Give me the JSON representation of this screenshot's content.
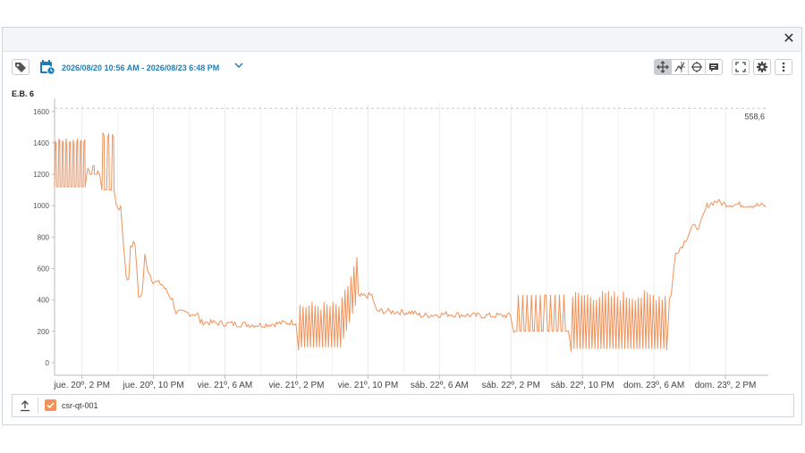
{
  "range_label": "2026/08/20 10:56 AM - 2026/08/23 6:48 PM",
  "panel_title": "E.B. 6",
  "legend": {
    "series_label": "csr-qt-001"
  },
  "icons": {
    "close": "close-icon",
    "tag": "tag-icon",
    "calendar": "calendar-icon",
    "chevron": "chevron-down-icon",
    "pan": "pan-icon",
    "crosshair": "crosshair-icon",
    "zoom": "zoom-icon",
    "annotate": "annotate-icon",
    "fullscreen": "fullscreen-icon",
    "settings": "gear-icon",
    "more": "more-icon",
    "export": "export-icon"
  },
  "colors": {
    "series": "#f0925a",
    "accent": "#1e7fb8",
    "threshold": "#c8c8c8"
  },
  "chart_data": {
    "type": "line",
    "x_label": "",
    "y_label": "",
    "ylim": [
      -80,
      1650
    ],
    "y_ticks": [
      0,
      200,
      400,
      600,
      800,
      1000,
      1200,
      1400,
      1600
    ],
    "y_tick_labels": [
      "0",
      "200",
      "400",
      "600",
      "800",
      "1000",
      "1200",
      "1400",
      "1600"
    ],
    "x_tick_labels": [
      "jue. 20º, 2 PM",
      "jue. 20º, 10 PM",
      "vie. 21º, 6 AM",
      "vie. 21º, 2 PM",
      "vie. 21º, 10 PM",
      "sáb. 22º, 6 AM",
      "sáb. 22º, 2 PM",
      "sáb. 22º, 10 PM",
      "dom. 23º, 6 AM",
      "dom. 23º, 2 PM"
    ],
    "x_tick_hours": [
      3.07,
      11.07,
      19.07,
      27.07,
      35.07,
      43.07,
      51.07,
      59.07,
      67.07,
      75.07
    ],
    "x_range_hours": [
      0,
      79.87
    ],
    "threshold": {
      "value": 1620,
      "label": "558,6"
    },
    "grid": true,
    "legend_position": "bottom",
    "series": [
      {
        "name": "csr-qt-001",
        "segments": [
          {
            "t0": 0.0,
            "t1": 3.6,
            "base": 1120,
            "peak": 1430,
            "n": 9
          },
          {
            "t0": 3.6,
            "t1": 5.3,
            "base": 1200,
            "peak": 1260,
            "n": 3
          },
          {
            "t0": 5.3,
            "t1": 6.9,
            "base": 1100,
            "peak": 1470,
            "n": 3
          }
        ],
        "points": [
          [
            6.9,
            1000
          ],
          [
            7.4,
            980
          ],
          [
            8.0,
            560
          ],
          [
            8.3,
            520
          ],
          [
            8.5,
            750
          ],
          [
            9.0,
            760
          ],
          [
            9.4,
            420
          ],
          [
            9.8,
            440
          ],
          [
            10.1,
            680
          ],
          [
            10.4,
            600
          ],
          [
            11.0,
            520
          ],
          [
            12.0,
            500
          ],
          [
            12.6,
            450
          ],
          [
            13.2,
            400
          ],
          [
            13.6,
            320
          ],
          [
            16.0,
            310
          ],
          [
            16.3,
            260
          ],
          [
            19.0,
            250
          ],
          [
            23.0,
            240
          ],
          [
            27.0,
            260
          ],
          [
            27.3,
            100
          ],
          [
            32.0,
            100
          ],
          [
            34.0,
            420
          ],
          [
            35.5,
            430
          ],
          [
            36.0,
            330
          ],
          [
            40.0,
            320
          ],
          [
            41.0,
            300
          ],
          [
            44.0,
            310
          ],
          [
            47.0,
            300
          ],
          [
            51.0,
            300
          ],
          [
            51.4,
            200
          ],
          [
            55.0,
            200
          ],
          [
            57.5,
            200
          ],
          [
            57.8,
            90
          ],
          [
            68.5,
            90
          ],
          [
            68.8,
            400
          ],
          [
            69.0,
            440
          ],
          [
            69.5,
            700
          ],
          [
            70.3,
            750
          ],
          [
            71.3,
            860
          ],
          [
            72.2,
            870
          ],
          [
            73.0,
            1000
          ],
          [
            74.0,
            1030
          ],
          [
            75.0,
            1010
          ],
          [
            79.6,
            1000
          ]
        ]
      }
    ]
  }
}
